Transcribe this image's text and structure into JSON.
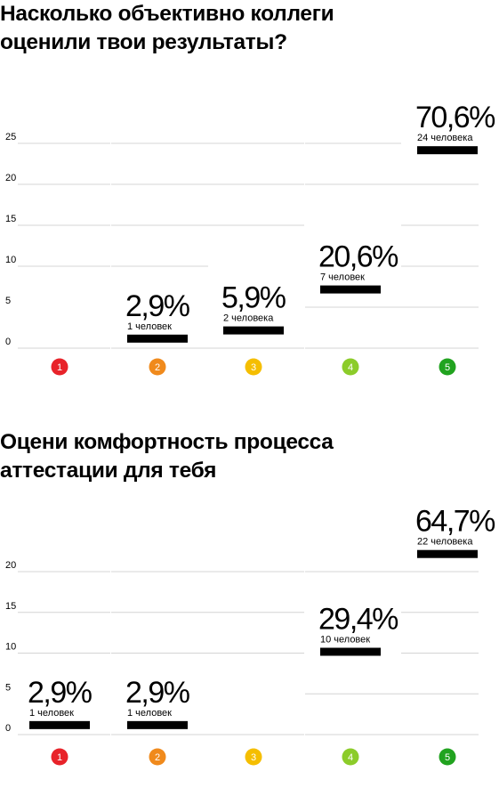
{
  "chart_data": [
    {
      "type": "bar",
      "title": "Насколько объективно коллеги\nоценили твои результаты?",
      "categories": [
        "1",
        "2",
        "3",
        "4",
        "5"
      ],
      "values": [
        0,
        1,
        2,
        7,
        24
      ],
      "percent_labels": [
        "",
        "2,9%",
        "5,9%",
        "20,6%",
        "70,6%"
      ],
      "count_labels": [
        "",
        "1 человек",
        "2 человека",
        "7 человек",
        "24 человека"
      ],
      "yticks": [
        0,
        5,
        10,
        15,
        20,
        25
      ],
      "ylim": [
        0,
        25
      ],
      "grid": true,
      "category_colors": [
        "#e8232a",
        "#f08a1c",
        "#f5be00",
        "#8ccc2a",
        "#21a31f"
      ],
      "bar_color": "#000000"
    },
    {
      "type": "bar",
      "title": "Оцени комфортность процесса\nаттестации для тебя",
      "categories": [
        "1",
        "2",
        "3",
        "4",
        "5"
      ],
      "values": [
        1,
        1,
        0,
        10,
        22
      ],
      "percent_labels": [
        "2,9%",
        "2,9%",
        "",
        "29,4%",
        "64,7%"
      ],
      "count_labels": [
        "1 человек",
        "1 человек",
        "",
        "10 человек",
        "22 человека"
      ],
      "yticks": [
        0,
        5,
        10,
        15,
        20
      ],
      "ylim": [
        0,
        20
      ],
      "grid": true,
      "category_colors": [
        "#e8232a",
        "#f08a1c",
        "#f5be00",
        "#8ccc2a",
        "#21a31f"
      ],
      "bar_color": "#000000"
    }
  ]
}
